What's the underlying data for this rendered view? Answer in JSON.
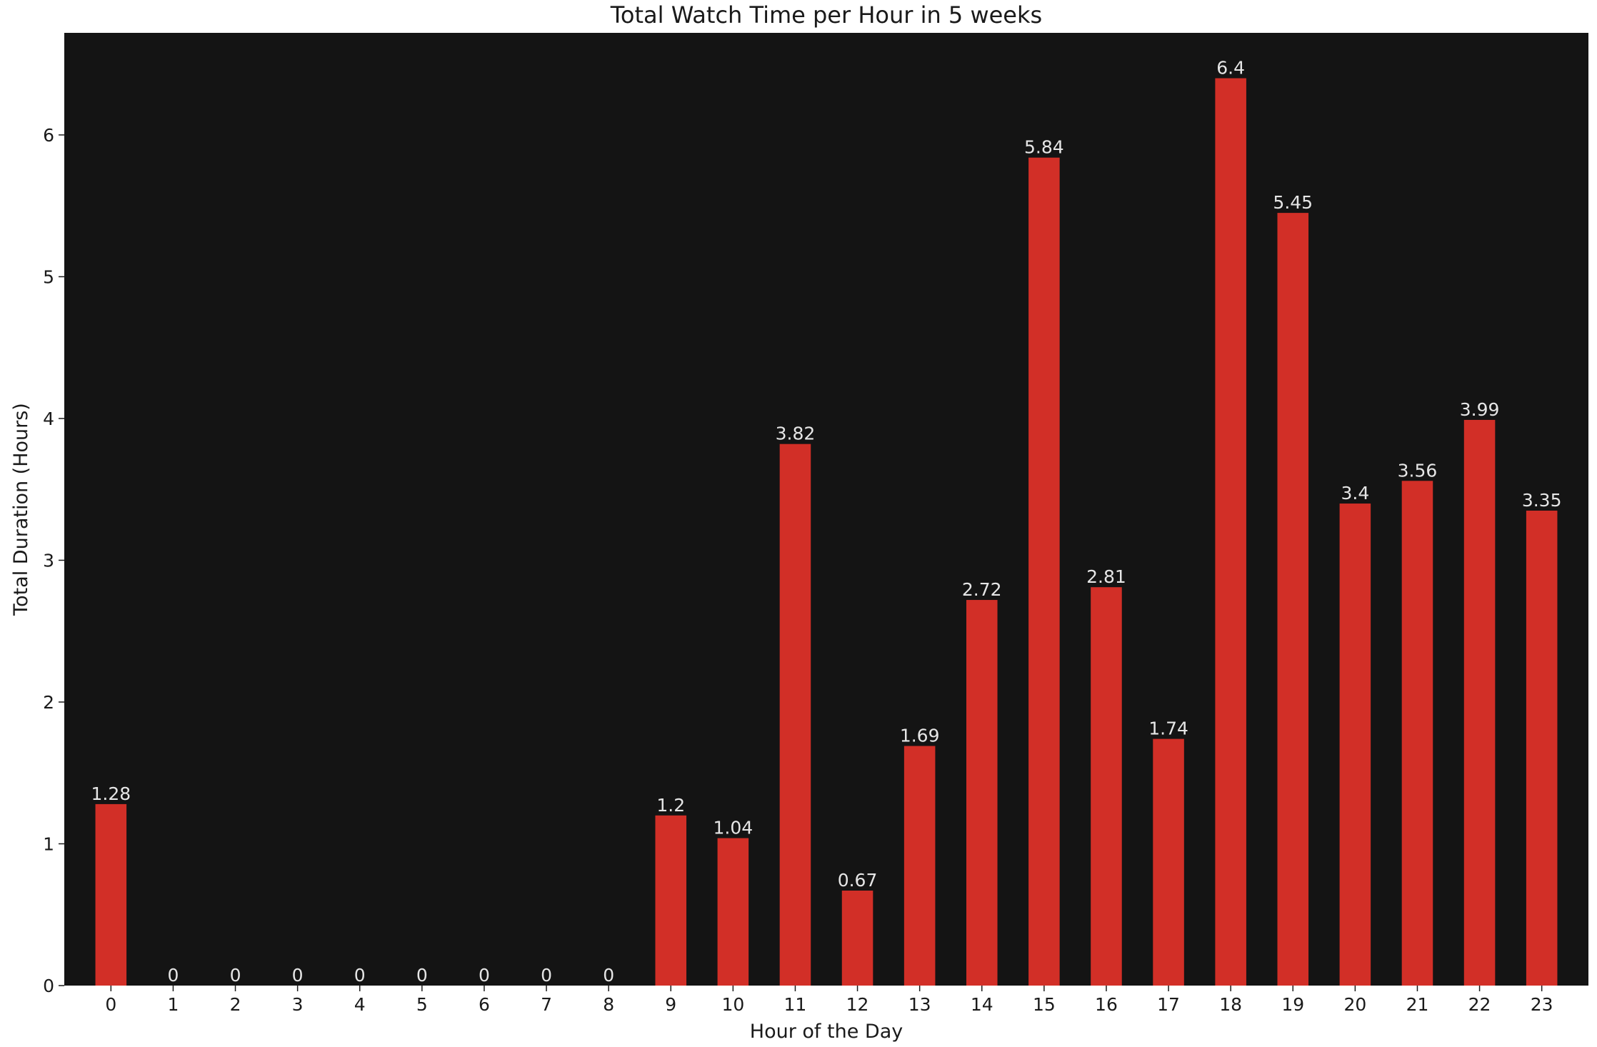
{
  "chart_data": {
    "type": "bar",
    "title": "Total Watch Time per Hour in 5 weeks",
    "xlabel": "Hour of the Day",
    "ylabel": "Total Duration (Hours)",
    "categories": [
      "0",
      "1",
      "2",
      "3",
      "4",
      "5",
      "6",
      "7",
      "8",
      "9",
      "10",
      "11",
      "12",
      "13",
      "14",
      "15",
      "16",
      "17",
      "18",
      "19",
      "20",
      "21",
      "22",
      "23"
    ],
    "values": [
      1.28,
      0,
      0,
      0,
      0,
      0,
      0,
      0,
      0,
      1.2,
      1.04,
      3.82,
      0.67,
      1.69,
      2.72,
      5.84,
      2.81,
      1.74,
      6.4,
      5.45,
      3.4,
      3.56,
      3.99,
      3.35
    ],
    "data_labels": [
      "1.28",
      "0",
      "0",
      "0",
      "0",
      "0",
      "0",
      "0",
      "0",
      "1.2",
      "1.04",
      "3.82",
      "0.67",
      "1.69",
      "2.72",
      "5.84",
      "2.81",
      "1.74",
      "6.4",
      "5.45",
      "3.4",
      "3.56",
      "3.99",
      "3.35"
    ],
    "yticks": [
      0,
      1,
      2,
      3,
      4,
      5,
      6
    ],
    "ylim": [
      0,
      6.72
    ],
    "grid": false,
    "legend": "none",
    "colors": {
      "bar": "#d22f27",
      "plot_background": "#141414",
      "figure_background": "#ffffff",
      "data_label": "#e6e6e6"
    }
  }
}
